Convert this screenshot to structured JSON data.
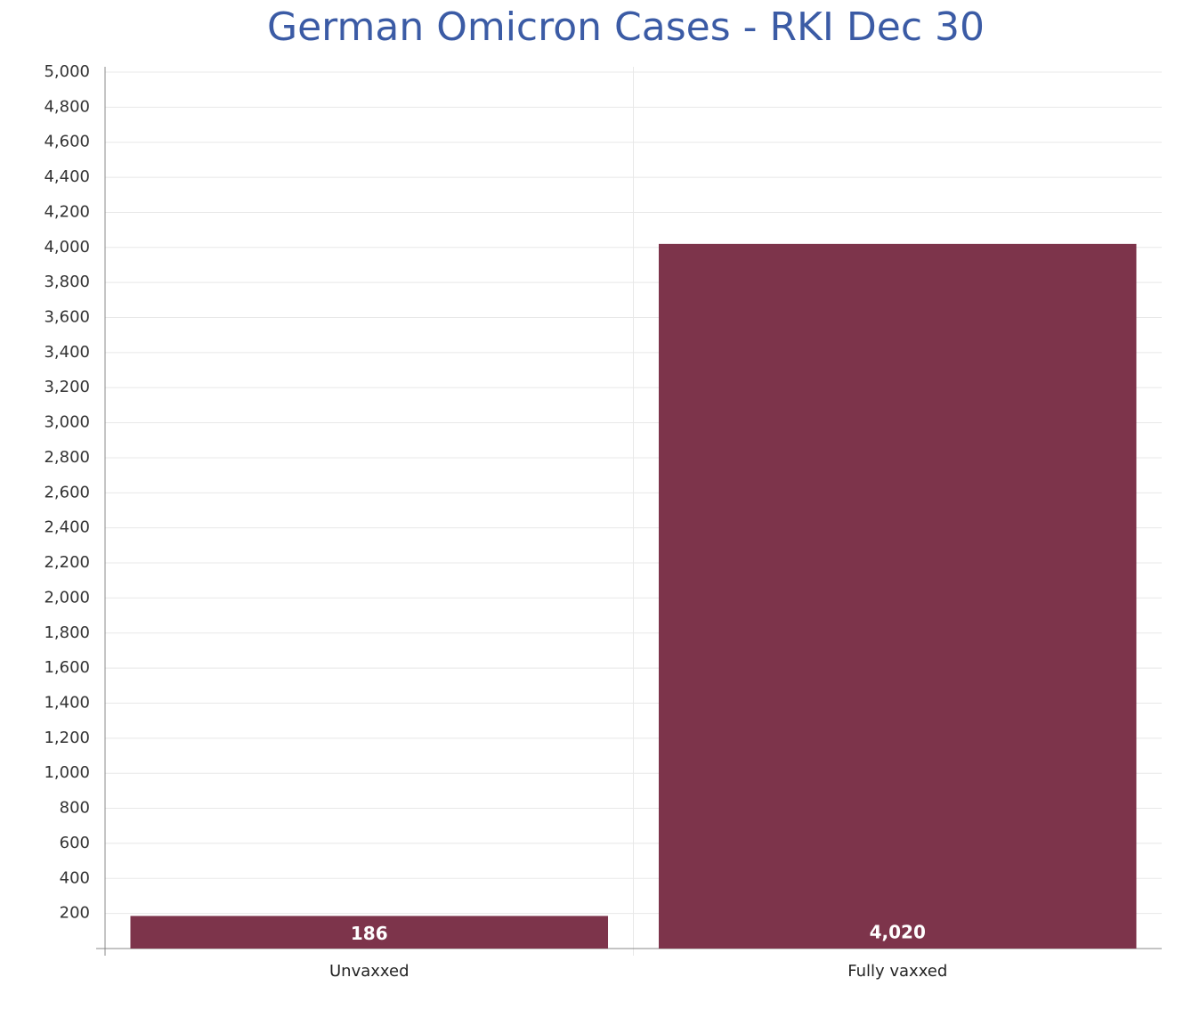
{
  "chart_data": {
    "type": "bar",
    "title": "German Omicron Cases - RKI Dec 30",
    "categories": [
      "Unvaxxed",
      "Fully vaxxed"
    ],
    "values": [
      186,
      4020
    ],
    "value_labels": [
      "186",
      "4,020"
    ],
    "color": "#7d344b",
    "ylim": [
      0,
      5000
    ],
    "yticks": [
      200,
      400,
      600,
      800,
      {
        "value": 1000,
        "label": "1,000"
      },
      {
        "value": 1200,
        "label": "1,200"
      },
      {
        "value": 1400,
        "label": "1,400"
      },
      {
        "value": 1600,
        "label": "1,600"
      },
      {
        "value": 1800,
        "label": "1,800"
      },
      {
        "value": 2000,
        "label": "2,000"
      },
      {
        "value": 2200,
        "label": "2,200"
      },
      {
        "value": 2400,
        "label": "2,400"
      },
      {
        "value": 2600,
        "label": "2,600"
      },
      {
        "value": 2800,
        "label": "2,800"
      },
      {
        "value": 3000,
        "label": "3,000"
      },
      {
        "value": 3200,
        "label": "3,200"
      },
      {
        "value": 3400,
        "label": "3,400"
      },
      {
        "value": 3600,
        "label": "3,600"
      },
      {
        "value": 3800,
        "label": "3,800"
      },
      {
        "value": 4000,
        "label": "4,000"
      },
      {
        "value": 4200,
        "label": "4,200"
      },
      {
        "value": 4400,
        "label": "4,400"
      },
      {
        "value": 4600,
        "label": "4,600"
      },
      {
        "value": 4800,
        "label": "4,800"
      },
      {
        "value": 5000,
        "label": "5,000"
      }
    ],
    "grid": true
  }
}
